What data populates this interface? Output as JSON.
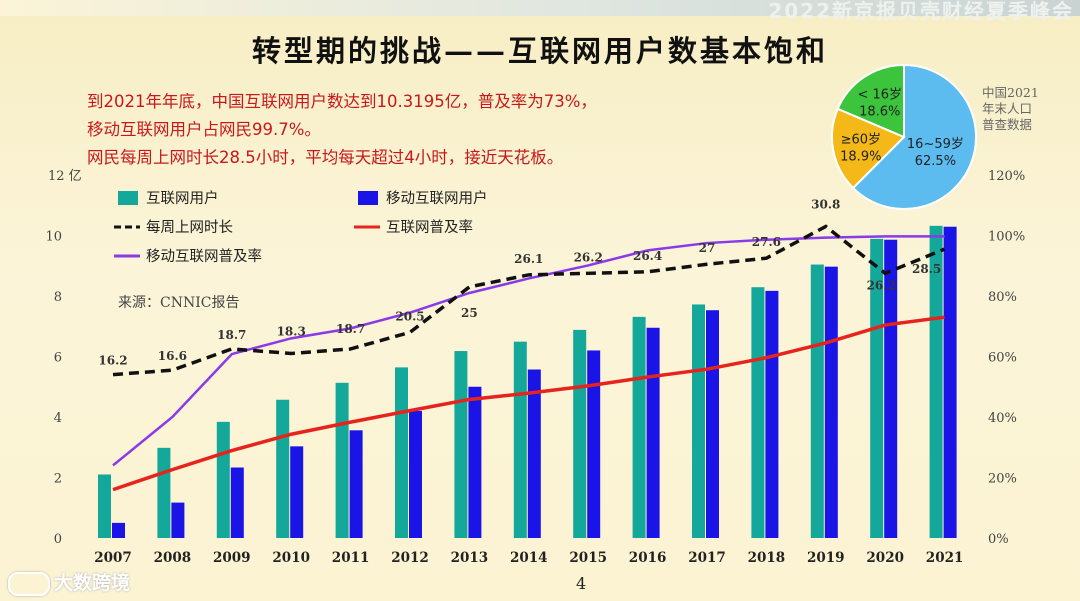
{
  "header": {
    "banner": "2022新京报贝壳财经夏季峰会"
  },
  "title": "转型期的挑战——互联网用户数基本饱和",
  "notes": [
    "到2021年年底，中国互联网用户数达到10.3195亿，普及率为73%，",
    "移动互联网用户占网民99.7%。",
    "网民每周上网时长28.5小时，平均每天超过4小时，接近天花板。"
  ],
  "pie_note": "中国2021年末人口普查数据",
  "source": "来源：CNNIC报告",
  "page_number": "4",
  "watermark": "大数跨境",
  "colors": {
    "internet_users": "#14a89a",
    "mobile_users": "#1b14e6",
    "weekly_hours": "#111111",
    "internet_rate": "#e6231d",
    "mobile_rate": "#8a3ae6",
    "pie_young": "#3cc43c",
    "pie_adult": "#5cbcf0",
    "pie_old": "#f4b818",
    "note_red": "#c8181c"
  },
  "chart_data": [
    {
      "type": "bar",
      "categories": [
        "2007",
        "2008",
        "2009",
        "2010",
        "2011",
        "2012",
        "2013",
        "2014",
        "2015",
        "2016",
        "2017",
        "2018",
        "2019",
        "2020",
        "2021"
      ],
      "ylim": [
        0,
        12
      ],
      "yticks": [
        0,
        2,
        4,
        6,
        8,
        10
      ],
      "ylabel_unit": "12 亿",
      "y2lim": [
        0,
        120
      ],
      "y2ticks": [
        "0%",
        "20%",
        "40%",
        "60%",
        "80%",
        "100%",
        "120%"
      ],
      "series": [
        {
          "name": "互联网用户",
          "kind": "bar",
          "axis": "left",
          "values": [
            2.1,
            2.98,
            3.84,
            4.57,
            5.13,
            5.64,
            6.18,
            6.49,
            6.88,
            7.31,
            7.72,
            8.29,
            9.04,
            9.89,
            10.32
          ]
        },
        {
          "name": "移动互联网用户",
          "kind": "bar",
          "axis": "left",
          "values": [
            0.5,
            1.17,
            2.33,
            3.03,
            3.56,
            4.2,
            5.0,
            5.57,
            6.2,
            6.95,
            7.53,
            8.17,
            8.97,
            9.86,
            10.29
          ]
        },
        {
          "name": "每周上网时长",
          "kind": "line",
          "dashed": true,
          "axis": "left",
          "values": [
            5.4,
            5.55,
            6.25,
            6.1,
            6.25,
            6.8,
            8.3,
            8.7,
            8.75,
            8.8,
            9.05,
            9.25,
            10.3,
            8.75,
            9.55
          ],
          "labels": [
            "16.2",
            "16.6",
            "18.7",
            "18.3",
            "18.7",
            "20.5",
            "25",
            "26.1",
            "26.2",
            "26.4",
            "27",
            "27.6",
            "30.8",
            "26.2",
            "28.5"
          ]
        },
        {
          "name": "互联网普及率",
          "kind": "line",
          "axis": "right",
          "values": [
            16,
            22.6,
            28.9,
            34.3,
            38.3,
            42.1,
            45.8,
            47.9,
            50.3,
            53.2,
            55.8,
            59.6,
            64.5,
            70.4,
            73
          ]
        },
        {
          "name": "移动互联网普及率",
          "kind": "line",
          "axis": "right",
          "values": [
            24,
            40,
            60.8,
            66,
            69.3,
            74.5,
            81,
            85.8,
            90.1,
            95.1,
            97.5,
            98.6,
            99.3,
            99.7,
            99.7
          ]
        }
      ]
    },
    {
      "type": "pie",
      "slices": [
        {
          "label": "16~59岁",
          "value": 62.5,
          "display": "62.5%"
        },
        {
          "label": "≥60岁",
          "value": 18.9,
          "display": "18.9%"
        },
        {
          "label": "< 16岁",
          "value": 18.6,
          "display": "18.6%"
        }
      ]
    }
  ]
}
